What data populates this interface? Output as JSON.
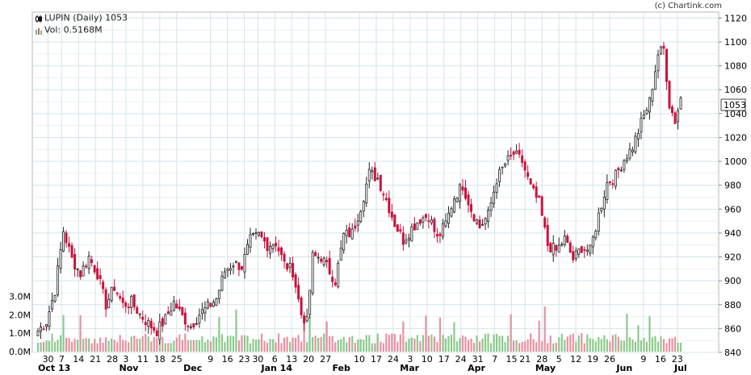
{
  "chart_data": {
    "type": "candlestick",
    "legend": {
      "price_label": "LUPIN (Daily) 1053",
      "volume_label": "Vol: 0.5168M"
    },
    "credit": "(c) Chartink.com",
    "last_price_label": "1053",
    "price_axis": {
      "ylim": [
        840,
        1125
      ],
      "ticks": [
        "840",
        "860",
        "880",
        "900",
        "920",
        "940",
        "960",
        "980",
        "1000",
        "1020",
        "1040",
        "1060",
        "1080",
        "1100",
        "1120"
      ]
    },
    "volume_axis": {
      "ylim": [
        0,
        4.2
      ],
      "ticks": [
        "0.0M",
        "1.0M",
        "2.0M",
        "3.0M"
      ]
    },
    "x_axis": {
      "n_days": 190,
      "day_ticks": [
        {
          "label": "30",
          "day": 3
        },
        {
          "label": "7",
          "day": 7
        },
        {
          "label": "14",
          "day": 12
        },
        {
          "label": "21",
          "day": 17
        },
        {
          "label": "28",
          "day": 22
        },
        {
          "label": "3",
          "day": 26
        },
        {
          "label": "11",
          "day": 31
        },
        {
          "label": "18",
          "day": 36
        },
        {
          "label": "25",
          "day": 41
        },
        {
          "label": "9",
          "day": 51
        },
        {
          "label": "16",
          "day": 56
        },
        {
          "label": "23",
          "day": 61
        },
        {
          "label": "30",
          "day": 65
        },
        {
          "label": "6",
          "day": 70
        },
        {
          "label": "13",
          "day": 75
        },
        {
          "label": "20",
          "day": 80
        },
        {
          "label": "27",
          "day": 85
        },
        {
          "label": "10",
          "day": 95
        },
        {
          "label": "17",
          "day": 100
        },
        {
          "label": "24",
          "day": 105
        },
        {
          "label": "3",
          "day": 110
        },
        {
          "label": "10",
          "day": 115
        },
        {
          "label": "17",
          "day": 120
        },
        {
          "label": "24",
          "day": 125
        },
        {
          "label": "31",
          "day": 130
        },
        {
          "label": "7",
          "day": 135
        },
        {
          "label": "15",
          "day": 140
        },
        {
          "label": "21",
          "day": 144
        },
        {
          "label": "28",
          "day": 149
        },
        {
          "label": "5",
          "day": 154
        },
        {
          "label": "12",
          "day": 159
        },
        {
          "label": "19",
          "day": 164
        },
        {
          "label": "26",
          "day": 169
        },
        {
          "label": "9",
          "day": 179
        },
        {
          "label": "16",
          "day": 184
        },
        {
          "label": "23",
          "day": 189
        }
      ],
      "month_ticks": [
        {
          "label": "Oct 13",
          "day": 0
        },
        {
          "label": "Nov",
          "day": 24
        },
        {
          "label": "Dec",
          "day": 43
        },
        {
          "label": "Jan 14",
          "day": 66
        },
        {
          "label": "Feb",
          "day": 87
        },
        {
          "label": "Mar",
          "day": 107
        },
        {
          "label": "Apr",
          "day": 127
        },
        {
          "label": "May",
          "day": 147
        },
        {
          "label": "Jun",
          "day": 171
        },
        {
          "label": "Jul",
          "day": 190
        }
      ]
    },
    "anchors": [
      [
        0,
        858
      ],
      [
        3,
        866
      ],
      [
        6,
        892
      ],
      [
        9,
        942
      ],
      [
        12,
        918
      ],
      [
        15,
        906
      ],
      [
        18,
        920
      ],
      [
        21,
        906
      ],
      [
        24,
        880
      ],
      [
        27,
        895
      ],
      [
        30,
        880
      ],
      [
        33,
        882
      ],
      [
        36,
        872
      ],
      [
        39,
        864
      ],
      [
        42,
        858
      ],
      [
        45,
        868
      ],
      [
        48,
        882
      ],
      [
        51,
        870
      ],
      [
        54,
        862
      ],
      [
        57,
        872
      ],
      [
        60,
        878
      ],
      [
        63,
        885
      ],
      [
        66,
        908
      ],
      [
        69,
        915
      ],
      [
        72,
        912
      ],
      [
        75,
        934
      ],
      [
        78,
        938
      ],
      [
        81,
        930
      ],
      [
        84,
        932
      ],
      [
        87,
        914
      ],
      [
        90,
        908
      ],
      [
        93,
        872
      ],
      [
        95,
        865
      ],
      [
        97,
        920
      ],
      [
        100,
        920
      ],
      [
        103,
        908
      ],
      [
        105,
        900
      ],
      [
        108,
        938
      ],
      [
        111,
        940
      ],
      [
        114,
        962
      ],
      [
        117,
        990
      ],
      [
        120,
        986
      ],
      [
        123,
        968
      ],
      [
        126,
        948
      ],
      [
        129,
        934
      ],
      [
        132,
        944
      ],
      [
        135,
        952
      ],
      [
        138,
        955
      ],
      [
        141,
        935
      ],
      [
        144,
        948
      ],
      [
        147,
        970
      ],
      [
        150,
        980
      ],
      [
        153,
        960
      ],
      [
        156,
        945
      ],
      [
        159,
        955
      ],
      [
        162,
        985
      ],
      [
        165,
        998
      ],
      [
        168,
        1006
      ],
      [
        171,
        1000
      ],
      [
        174,
        978
      ],
      [
        177,
        965
      ],
      [
        180,
        930
      ],
      [
        183,
        925
      ],
      [
        186,
        935
      ],
      [
        189,
        918
      ],
      [
        192,
        928
      ],
      [
        195,
        925
      ],
      [
        198,
        955
      ],
      [
        201,
        982
      ],
      [
        204,
        988
      ],
      [
        207,
        1002
      ],
      [
        210,
        1012
      ],
      [
        213,
        1032
      ],
      [
        216,
        1050
      ],
      [
        219,
        1090
      ],
      [
        221,
        1094
      ],
      [
        223,
        1048
      ],
      [
        225,
        1034
      ],
      [
        227,
        1053
      ]
    ],
    "last_index": 227
  }
}
